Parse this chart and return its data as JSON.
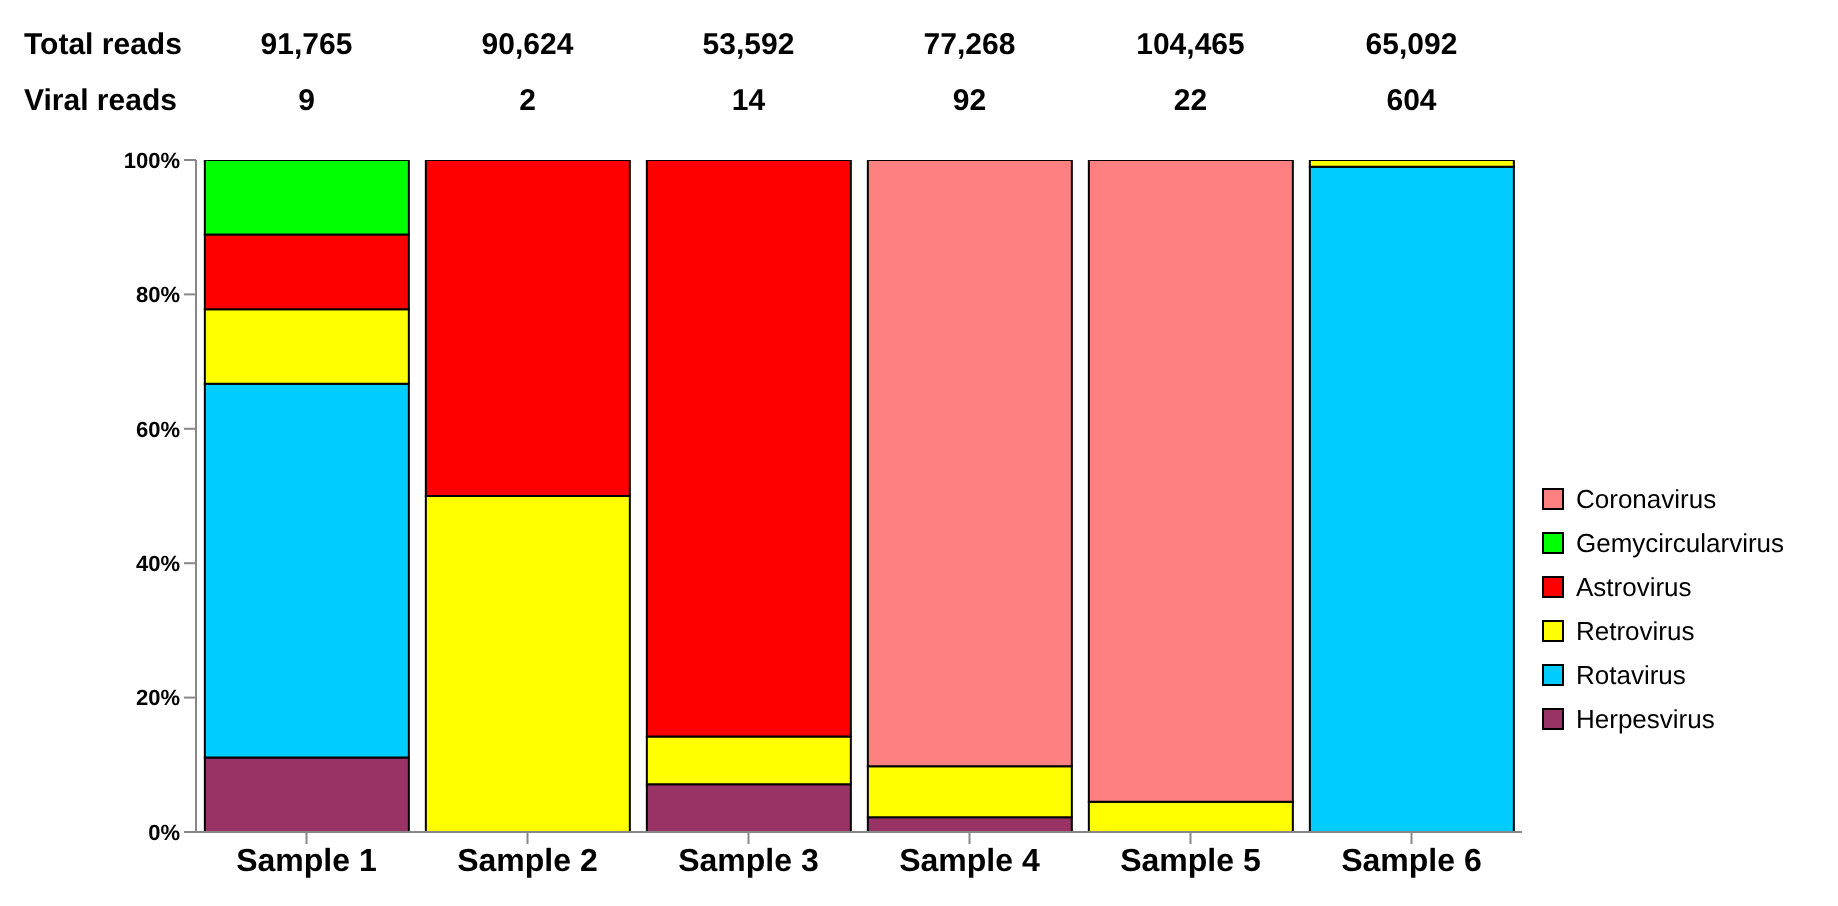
{
  "chart_data": {
    "type": "bar",
    "stacked": true,
    "categories": [
      "Sample 1",
      "Sample 2",
      "Sample 3",
      "Sample 4",
      "Sample 5",
      "Sample 6"
    ],
    "series": [
      {
        "name": "Herpesvirus",
        "color": "#993366",
        "values": [
          11.1,
          0,
          7.1,
          2.2,
          0,
          0
        ]
      },
      {
        "name": "Rotavirus",
        "color": "#00ccff",
        "values": [
          55.6,
          0,
          0,
          0,
          0,
          99
        ]
      },
      {
        "name": "Retrovirus",
        "color": "#ffff00",
        "values": [
          11.1,
          50,
          7.1,
          7.6,
          4.5,
          1
        ]
      },
      {
        "name": "Astrovirus",
        "color": "#ff0000",
        "values": [
          11.1,
          50,
          85.8,
          0,
          0,
          0
        ]
      },
      {
        "name": "Gemycircularvirus",
        "color": "#00ff00",
        "values": [
          11.1,
          0,
          0,
          0,
          0,
          0
        ]
      },
      {
        "name": "Coronavirus",
        "color": "#ff8080",
        "values": [
          0,
          0,
          0,
          90.2,
          95.5,
          0
        ]
      }
    ],
    "ylim": [
      0,
      100
    ],
    "yticks": [
      {
        "value": 0,
        "label": "0%"
      },
      {
        "value": 20,
        "label": "20%"
      },
      {
        "value": 40,
        "label": "40%"
      },
      {
        "value": 60,
        "label": "60%"
      },
      {
        "value": 80,
        "label": "80%"
      },
      {
        "value": 100,
        "label": "100%"
      }
    ],
    "grid": false,
    "legend": "right",
    "annotations": [
      "Total reads",
      "91,765",
      "90,624",
      "53,592",
      "77,268",
      "104,465",
      "65,092",
      "Viral reads",
      "9",
      "2",
      "14",
      "92",
      "22",
      "604"
    ]
  }
}
